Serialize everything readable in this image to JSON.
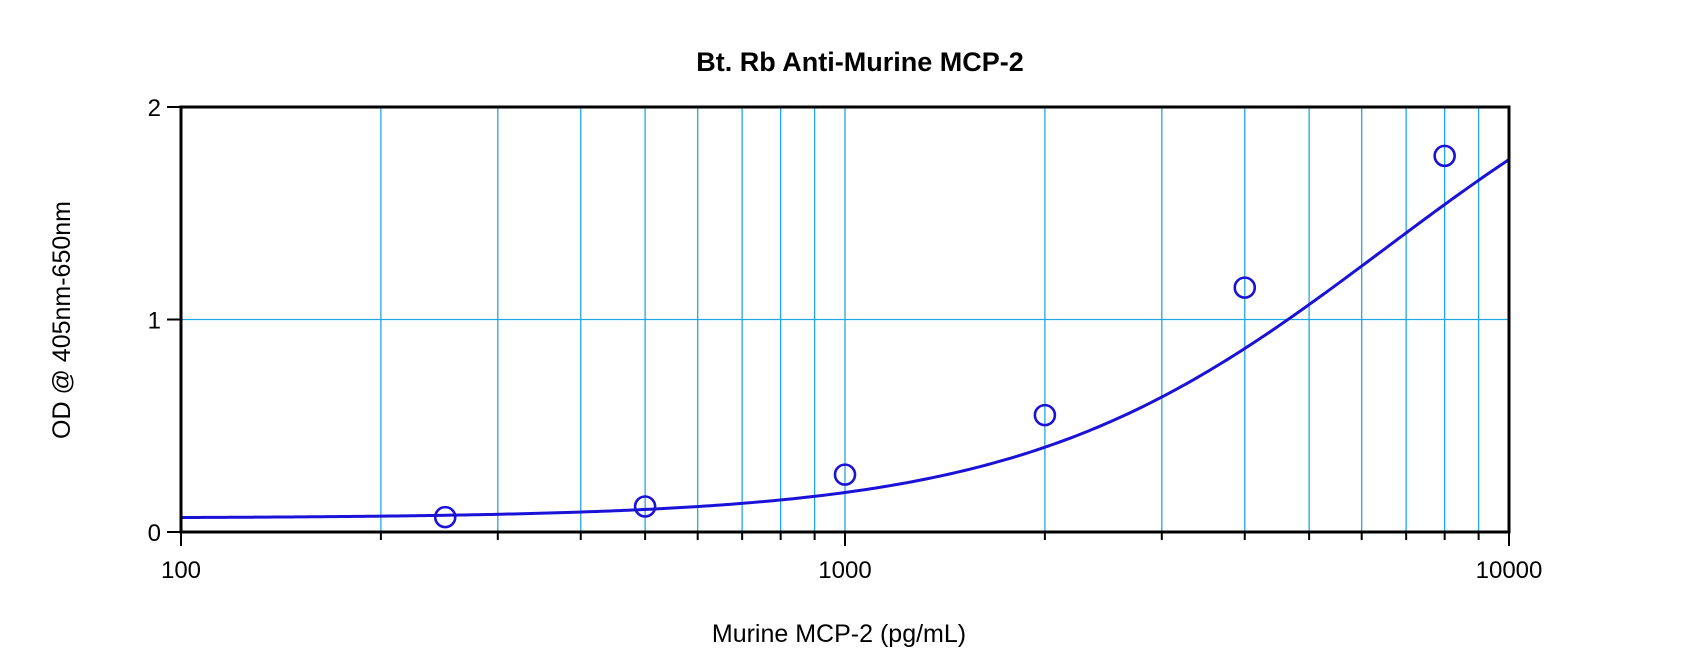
{
  "chart_data": {
    "type": "scatter",
    "title": "Bt. Rb Anti-Murine MCP-2",
    "xlabel": "Murine MCP-2 (pg/mL)",
    "ylabel": "OD @ 405nm-650nm",
    "xscale": "log",
    "xlim": [
      100,
      10000
    ],
    "ylim": [
      0,
      2
    ],
    "x_ticks": [
      {
        "value": 100,
        "label": "100"
      },
      {
        "value": 1000,
        "label": "1000"
      },
      {
        "value": 10000,
        "label": "10000"
      }
    ],
    "y_ticks": [
      {
        "value": 0,
        "label": "0"
      },
      {
        "value": 1,
        "label": "1"
      },
      {
        "value": 2,
        "label": "2"
      }
    ],
    "grid": true,
    "points": [
      {
        "x": 250,
        "y": 0.07
      },
      {
        "x": 500,
        "y": 0.12
      },
      {
        "x": 1000,
        "y": 0.27
      },
      {
        "x": 2000,
        "y": 0.55
      },
      {
        "x": 4000,
        "y": 1.15
      },
      {
        "x": 8000,
        "y": 1.77
      }
    ],
    "fit_curve": {
      "type": "4PL",
      "bottom": 0.065,
      "top": 2.6,
      "ec50": 6500,
      "hill": 1.6
    },
    "colors": {
      "grid": "#22a6e6",
      "curve": "#1a12d6",
      "marker": "#1a12d6",
      "frame": "#000000"
    }
  }
}
